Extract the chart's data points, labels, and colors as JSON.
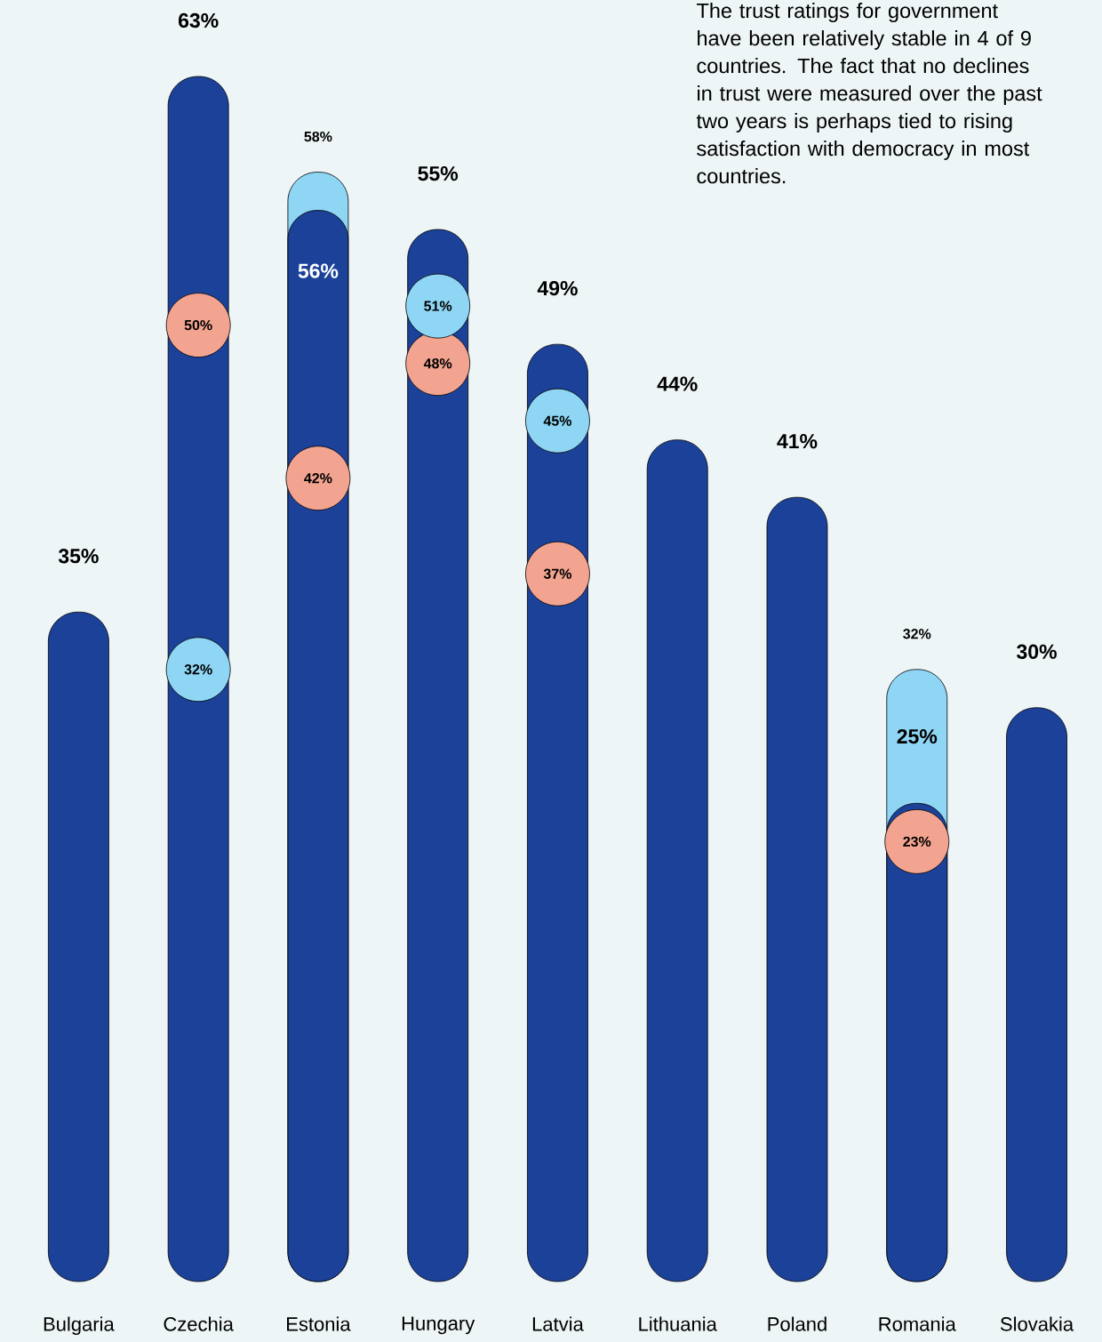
{
  "chart_data": {
    "type": "bar",
    "annotations": [
      "The trust ratings for government have been relatively stable in 4 of 9 countries. The fact that no declines in trust were measured over the past two years is perhaps tied to rising satisfaction with democracy in most countries."
    ],
    "categories": [
      "Bulgaria",
      "Czechia",
      "Estonia",
      "Hungary",
      "Latvia",
      "Lithuania",
      "Poland",
      "Romania",
      "Slovakia"
    ],
    "ylim": [
      0,
      67
    ],
    "tick_labels": "x",
    "series": [
      {
        "color": "#8fd6f5",
        "values": [
          null,
          null,
          58,
          null,
          null,
          null,
          null,
          32,
          null
        ],
        "value_labels": [
          null,
          null,
          "58%",
          null,
          null,
          null,
          null,
          "32%",
          null
        ]
      },
      {
        "color": "#1c4199",
        "values": [
          35,
          63,
          56,
          55,
          49,
          44,
          41,
          25,
          30
        ],
        "value_labels": [
          "35%",
          "63%",
          "56%",
          "55%",
          "49%",
          "44%",
          "41%",
          "25%",
          "30%"
        ]
      },
      {
        "type": "scatter",
        "color": "#f2a491",
        "values": [
          null,
          50,
          42,
          48,
          37,
          null,
          null,
          23,
          null
        ],
        "value_labels": [
          null,
          "50%",
          "42%",
          "48%",
          "37%",
          null,
          null,
          "23%",
          null
        ]
      },
      {
        "type": "scatter",
        "color": "#8fd6f5",
        "values": [
          null,
          32,
          null,
          51,
          45,
          null,
          null,
          null,
          null
        ],
        "value_labels": [
          null,
          "32%",
          null,
          "51%",
          "45%",
          null,
          null,
          null,
          null
        ]
      }
    ]
  }
}
